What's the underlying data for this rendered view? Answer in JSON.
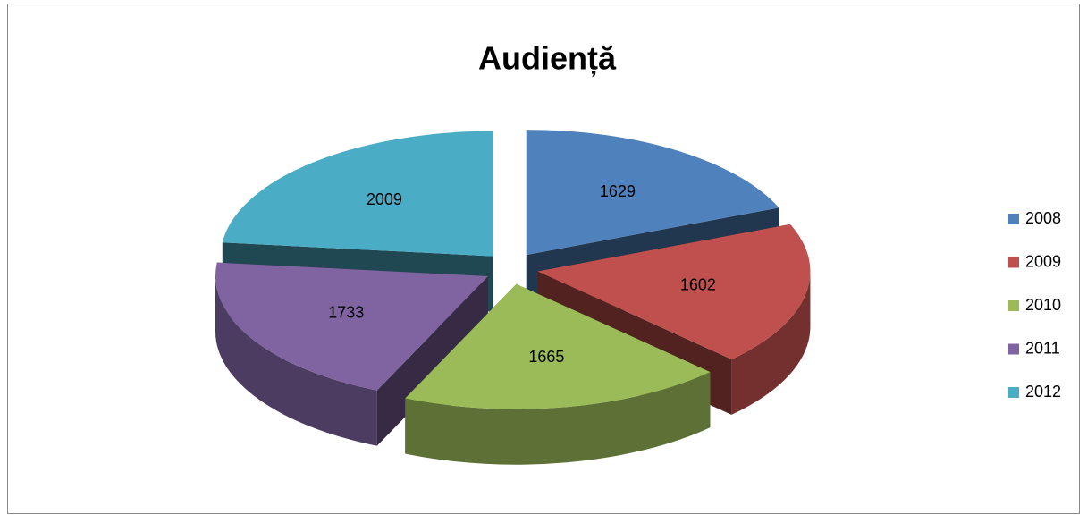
{
  "chart_data": {
    "type": "pie",
    "title": "Audiență",
    "categories": [
      "2008",
      "2009",
      "2010",
      "2011",
      "2012"
    ],
    "values": [
      1629,
      1602,
      1665,
      1733,
      2009
    ],
    "colors": [
      "#4f81bd",
      "#c0504d",
      "#9bbb59",
      "#8064a2",
      "#4bacc6"
    ],
    "legend": "right"
  }
}
